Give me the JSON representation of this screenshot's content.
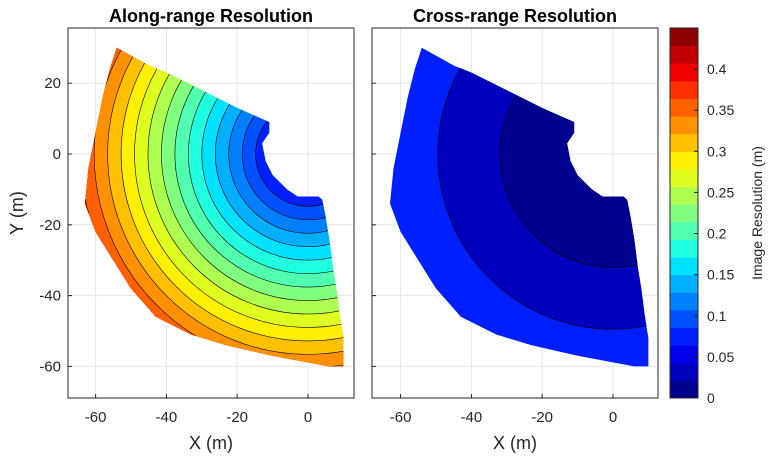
{
  "chart_data": [
    {
      "type": "heatmap",
      "title": "Along-range Resolution",
      "xlabel": "X (m)",
      "ylabel": "Y (m)",
      "xlim": [
        -68,
        14
      ],
      "ylim": [
        -68,
        34
      ],
      "xticks": [
        "-60",
        "-40",
        "-20",
        "0"
      ],
      "yticks": [
        "20",
        "0",
        "-20",
        "-40",
        "-60"
      ],
      "grid": true,
      "field": "along-range resolution, increasing with distance from a radar near (0, 0); filled contour bands, 0.05 m at center to 0.45 m at far edge",
      "band_count": 18
    },
    {
      "type": "heatmap",
      "title": "Cross-range Resolution",
      "xlabel": "X (m)",
      "xlim": [
        -68,
        14
      ],
      "ylim": [
        -68,
        34
      ],
      "xticks": [
        "-60",
        "-40",
        "-20",
        "0"
      ],
      "grid": true,
      "field": "cross-range resolution; three contour bands",
      "bands": [
        {
          "range_m": [
            0.0,
            0.025
          ],
          "level": "inner"
        },
        {
          "range_m": [
            0.025,
            0.05
          ],
          "level": "middle"
        },
        {
          "range_m": [
            0.05,
            0.075
          ],
          "level": "outer"
        }
      ]
    }
  ],
  "colorbar": {
    "label": "Image Resolution (m)",
    "ticks": [
      "0",
      "0.05",
      "0.1",
      "0.15",
      "0.2",
      "0.25",
      "0.3",
      "0.35",
      "0.4"
    ],
    "range": [
      0,
      0.45
    ],
    "colormap": [
      "#00008F",
      "#0000BE",
      "#0000EE",
      "#001FFF",
      "#0050FF",
      "#0080FF",
      "#00B0FF",
      "#00E0FF",
      "#20FFDF",
      "#50FFAF",
      "#80FF80",
      "#AFFF50",
      "#DFFF20",
      "#FFEF00",
      "#FFC000",
      "#FF9000",
      "#FF6000",
      "#FF3000",
      "#F00000",
      "#C00000",
      "#8F0000"
    ]
  }
}
